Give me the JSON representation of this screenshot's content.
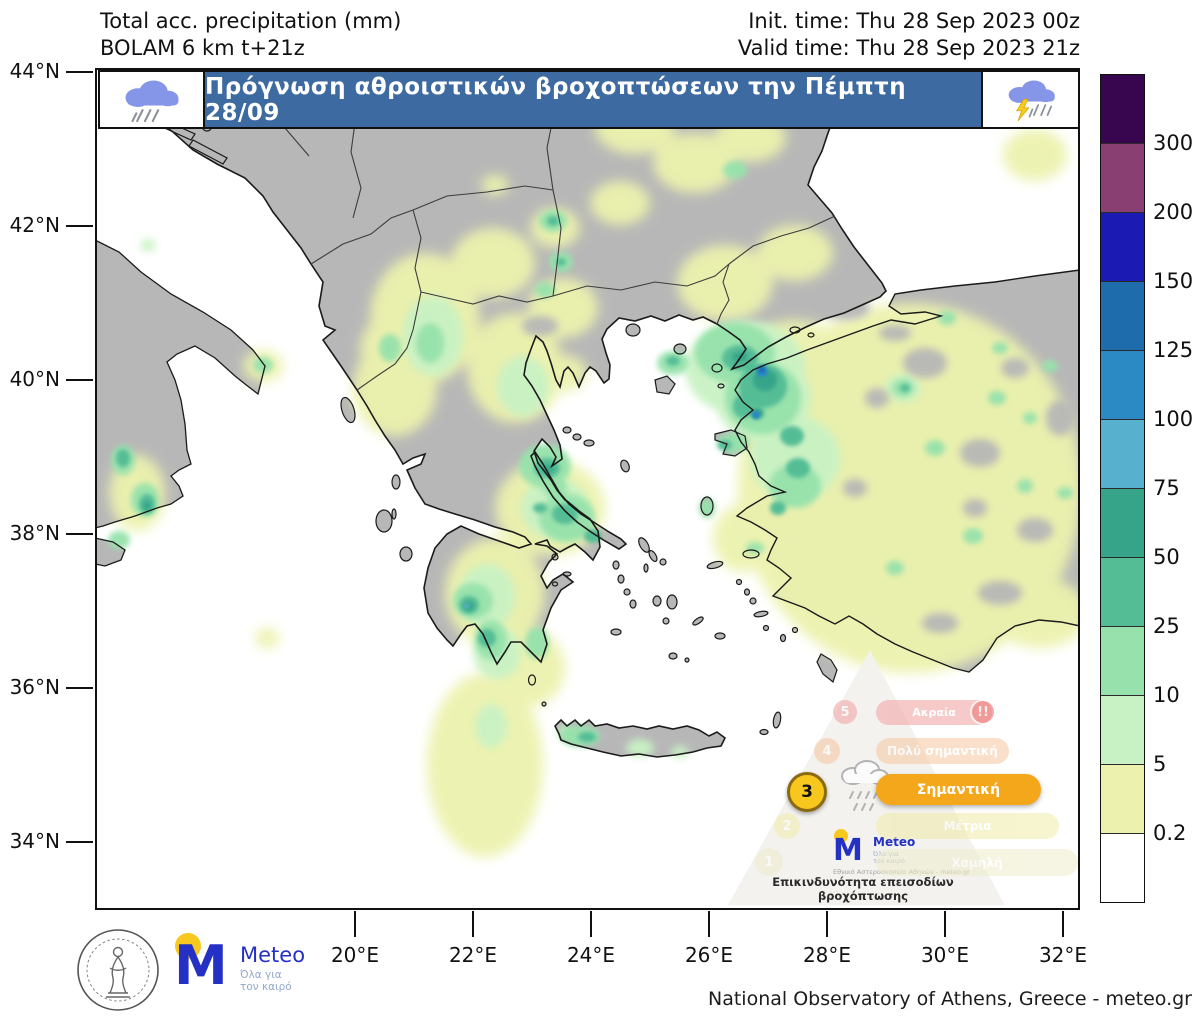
{
  "header": {
    "product_line1": "Total acc. precipitation (mm)",
    "product_line2": "BOLAM 6 km t+21z",
    "init_time": "Init. time: Thu 28 Sep 2023 00z",
    "valid_time": "Valid time: Thu 28 Sep 2023 21z"
  },
  "banner": {
    "title": "Πρόγνωση αθροιστικών βροχοπτώσεων την Πέμπτη 28/09",
    "bg_color": "#3d6aa0"
  },
  "map": {
    "lat_labels": [
      "44°N",
      "42°N",
      "40°N",
      "38°N",
      "36°N",
      "34°N"
    ],
    "lon_labels": [
      "20°E",
      "22°E",
      "24°E",
      "26°E",
      "28°E",
      "30°E",
      "32°E"
    ],
    "land_color": "#b7b7b7",
    "sea_color": "#ffffff"
  },
  "colorbar": {
    "unit": "mm",
    "segments": [
      {
        "color": "#38064f",
        "label": ""
      },
      {
        "color": "#8a3f72",
        "label": "300"
      },
      {
        "color": "#1b1bb4",
        "label": "200"
      },
      {
        "color": "#1e6cac",
        "label": "150"
      },
      {
        "color": "#2b8ac4",
        "label": "125"
      },
      {
        "color": "#56b0ce",
        "label": "100"
      },
      {
        "color": "#35a489",
        "label": "75"
      },
      {
        "color": "#55bd96",
        "label": "50"
      },
      {
        "color": "#97e2ac",
        "label": "25"
      },
      {
        "color": "#c9f2c4",
        "label": "10"
      },
      {
        "color": "#ecf2ad",
        "label": "5"
      },
      {
        "color": "#ffffff",
        "label": "0.2"
      }
    ]
  },
  "pyramid": {
    "title": "Επικινδυνότητα επεισοδίων βροχόπτωσης",
    "logo_text": "Meteo",
    "logo_sub": "Εθνικό Αστεροσκοπείο Αθηνών - meteo.gr",
    "levels": [
      {
        "num": "5",
        "label": "Ακραία",
        "badge": "!!",
        "pill_color": "#f2a0a0",
        "circle_color": "#f2a0a0",
        "active": false
      },
      {
        "num": "4",
        "label": "Πολύ σημαντική",
        "pill_color": "#f7c8a0",
        "circle_color": "#f6c49c",
        "active": false
      },
      {
        "num": "3",
        "label": "Σημαντική",
        "pill_color": "#f5a71b",
        "circle_color": "#f8c71e",
        "active": true
      },
      {
        "num": "2",
        "label": "Μέτρια",
        "pill_color": "#f0eca8",
        "circle_color": "#f0ecaa",
        "active": false
      },
      {
        "num": "1",
        "label": "Χαμηλή",
        "pill_color": "#efedcc",
        "circle_color": "#efeccb",
        "active": false
      }
    ]
  },
  "footer": {
    "attribution": "National Observatory of Athens, Greece - meteo.gr",
    "logo_mark": "M",
    "logo_name": "Meteo",
    "logo_tagline_line1": "Όλα για",
    "logo_tagline_line2": "τον καιρό"
  }
}
